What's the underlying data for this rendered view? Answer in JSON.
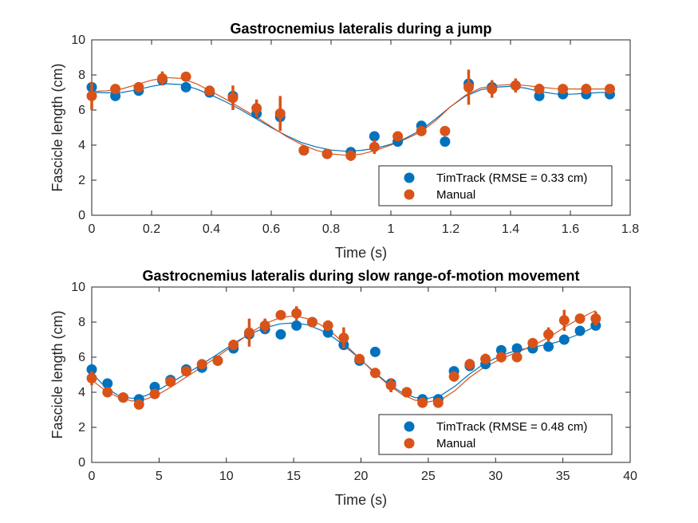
{
  "colors": {
    "timtrack": "#0072BD",
    "manual": "#D95319",
    "axis": "#262626"
  },
  "chart_data": [
    {
      "type": "scatter",
      "title": "Gastrocnemius lateralis during a jump",
      "xlabel": "Time (s)",
      "ylabel": "Fascicle length (cm)",
      "xlim": [
        0,
        1.8
      ],
      "ylim": [
        0,
        10
      ],
      "xticks": [
        "0",
        "0.2",
        "0.4",
        "0.6",
        "0.8",
        "1",
        "1.2",
        "1.4",
        "1.6",
        "1.8"
      ],
      "yticks": [
        "0",
        "2",
        "4",
        "6",
        "8",
        "10"
      ],
      "legend_position": "bottom-right",
      "series": [
        {
          "name": "TimTrack (RMSE = 0.33 cm)",
          "x": [
            0,
            0.079,
            0.157,
            0.236,
            0.315,
            0.394,
            0.472,
            0.551,
            0.63,
            0.709,
            0.787,
            0.866,
            0.945,
            1.023,
            1.102,
            1.181,
            1.26,
            1.338,
            1.417,
            1.496,
            1.575,
            1.653,
            1.732
          ],
          "y": [
            7.3,
            6.8,
            7.1,
            7.7,
            7.3,
            7.0,
            6.8,
            5.8,
            5.6,
            3.7,
            3.5,
            3.6,
            4.5,
            4.2,
            5.1,
            4.2,
            7.5,
            7.3,
            7.4,
            6.8,
            6.9,
            6.9,
            6.9
          ]
        },
        {
          "name": "Manual",
          "x": [
            0,
            0.079,
            0.157,
            0.236,
            0.315,
            0.394,
            0.472,
            0.551,
            0.63,
            0.709,
            0.787,
            0.866,
            0.945,
            1.023,
            1.102,
            1.181,
            1.26,
            1.338,
            1.417,
            1.496,
            1.575,
            1.653,
            1.732
          ],
          "y": [
            6.8,
            7.2,
            7.3,
            7.8,
            7.9,
            7.1,
            6.7,
            6.1,
            5.8,
            3.7,
            3.5,
            3.4,
            3.9,
            4.5,
            4.8,
            4.8,
            7.3,
            7.2,
            7.4,
            7.2,
            7.2,
            7.2,
            7.2
          ],
          "err": [
            0.8,
            0.2,
            0.2,
            0.4,
            0.2,
            0.2,
            0.7,
            0.5,
            1.0,
            0.1,
            0.1,
            0.3,
            0.4,
            0.2,
            0.2,
            0.1,
            1.0,
            0.5,
            0.4,
            0.3,
            0.2,
            0.3,
            0.2
          ]
        }
      ],
      "fit_x": [
        0,
        0.05,
        0.1,
        0.15,
        0.2,
        0.25,
        0.3,
        0.35,
        0.4,
        0.45,
        0.5,
        0.55,
        0.6,
        0.65,
        0.7,
        0.75,
        0.8,
        0.85,
        0.9,
        0.95,
        1.0,
        1.05,
        1.1,
        1.15,
        1.2,
        1.25,
        1.3,
        1.35,
        1.4,
        1.45,
        1.5,
        1.55,
        1.6,
        1.65,
        1.7,
        1.732
      ],
      "fit_timtrack": [
        7.0,
        6.98,
        7.0,
        7.15,
        7.35,
        7.5,
        7.45,
        7.2,
        6.85,
        6.45,
        6.0,
        5.5,
        5.0,
        4.55,
        4.15,
        3.9,
        3.72,
        3.65,
        3.7,
        3.82,
        4.05,
        4.4,
        4.85,
        5.5,
        6.2,
        6.8,
        7.15,
        7.3,
        7.35,
        7.25,
        7.05,
        6.92,
        6.9,
        6.95,
        7.0,
        7.0
      ],
      "fit_manual": [
        7.05,
        7.1,
        7.2,
        7.45,
        7.7,
        7.85,
        7.8,
        7.5,
        7.05,
        6.6,
        6.1,
        5.6,
        5.05,
        4.5,
        4.05,
        3.7,
        3.5,
        3.42,
        3.48,
        3.7,
        4.0,
        4.35,
        4.75,
        5.4,
        6.2,
        6.85,
        7.25,
        7.4,
        7.45,
        7.4,
        7.3,
        7.22,
        7.2,
        7.2,
        7.2,
        7.2
      ]
    },
    {
      "type": "scatter",
      "title": "Gastrocnemius lateralis during slow range-of-motion movement",
      "xlabel": "Time (s)",
      "ylabel": "Fascicle length (cm)",
      "xlim": [
        0,
        40
      ],
      "ylim": [
        0,
        10
      ],
      "xticks": [
        "0",
        "5",
        "10",
        "15",
        "20",
        "25",
        "30",
        "35",
        "40"
      ],
      "yticks": [
        "0",
        "2",
        "4",
        "6",
        "8",
        "10"
      ],
      "legend_position": "bottom-right",
      "series": [
        {
          "name": "TimTrack (RMSE = 0.48 cm)",
          "x": [
            0,
            1.17,
            2.34,
            3.51,
            4.68,
            5.85,
            7.02,
            8.19,
            9.36,
            10.53,
            11.7,
            12.87,
            14.04,
            15.21,
            16.38,
            17.55,
            18.72,
            19.89,
            21.06,
            22.23,
            23.4,
            24.57,
            25.74,
            26.91,
            28.08,
            29.25,
            30.42,
            31.59,
            32.76,
            33.93,
            35.1,
            36.27,
            37.44
          ],
          "y": [
            5.3,
            4.5,
            3.7,
            3.6,
            4.3,
            4.7,
            5.3,
            5.4,
            5.8,
            6.5,
            7.3,
            7.6,
            7.3,
            7.8,
            8.0,
            7.4,
            6.7,
            5.8,
            6.3,
            4.5,
            4.0,
            3.6,
            3.6,
            5.2,
            5.5,
            5.6,
            6.4,
            6.5,
            6.5,
            6.6,
            7.0,
            7.5,
            7.8
          ]
        },
        {
          "name": "Manual",
          "x": [
            0,
            1.17,
            2.34,
            3.51,
            4.68,
            5.85,
            7.02,
            8.19,
            9.36,
            10.53,
            11.7,
            12.87,
            14.04,
            15.21,
            16.38,
            17.55,
            18.72,
            19.89,
            21.06,
            22.23,
            23.4,
            24.57,
            25.74,
            26.91,
            28.08,
            29.25,
            30.42,
            31.59,
            32.76,
            33.93,
            35.1,
            36.27,
            37.44
          ],
          "y": [
            4.8,
            4.0,
            3.7,
            3.3,
            3.9,
            4.6,
            5.2,
            5.6,
            5.8,
            6.7,
            7.4,
            7.8,
            8.4,
            8.5,
            8.0,
            7.8,
            7.1,
            5.9,
            5.1,
            4.4,
            4.0,
            3.4,
            3.4,
            4.9,
            5.6,
            5.9,
            6.0,
            6.0,
            6.8,
            7.3,
            8.1,
            8.2,
            8.2
          ],
          "err": [
            0.4,
            0.1,
            0.1,
            0.2,
            0.1,
            0.1,
            0.2,
            0.1,
            0.1,
            0.3,
            0.8,
            0.4,
            0.1,
            0.4,
            0.2,
            0.3,
            0.6,
            0.2,
            0.2,
            0.4,
            0.1,
            0.2,
            0.2,
            0.3,
            0.3,
            0.3,
            0.3,
            0.2,
            0.2,
            0.4,
            0.6,
            0.2,
            0.4
          ]
        }
      ],
      "fit_x": [
        0,
        1,
        2,
        3,
        4,
        5,
        6,
        7,
        8,
        9,
        10,
        11,
        12,
        13,
        14,
        15,
        16,
        17,
        18,
        19,
        20,
        21,
        22,
        23,
        24,
        25,
        26,
        27,
        28,
        29,
        30,
        31,
        32,
        33,
        34,
        35,
        36,
        37,
        37.44
      ],
      "fit_timtrack": [
        5.1,
        4.3,
        3.8,
        3.65,
        3.8,
        4.15,
        4.6,
        5.05,
        5.5,
        6.0,
        6.5,
        7.0,
        7.4,
        7.7,
        7.9,
        7.95,
        7.85,
        7.55,
        7.1,
        6.5,
        5.85,
        5.15,
        4.5,
        4.0,
        3.7,
        3.65,
        3.85,
        4.35,
        5.0,
        5.55,
        5.95,
        6.25,
        6.45,
        6.6,
        6.75,
        6.95,
        7.25,
        7.6,
        7.8
      ],
      "fit_manual": [
        4.7,
        4.1,
        3.7,
        3.5,
        3.6,
        3.9,
        4.35,
        4.85,
        5.35,
        5.85,
        6.4,
        6.95,
        7.5,
        7.95,
        8.25,
        8.35,
        8.2,
        7.85,
        7.3,
        6.6,
        5.85,
        5.1,
        4.45,
        3.9,
        3.55,
        3.45,
        3.6,
        4.1,
        4.8,
        5.35,
        5.75,
        6.1,
        6.4,
        6.75,
        7.15,
        7.65,
        8.1,
        8.5,
        8.65
      ]
    }
  ]
}
